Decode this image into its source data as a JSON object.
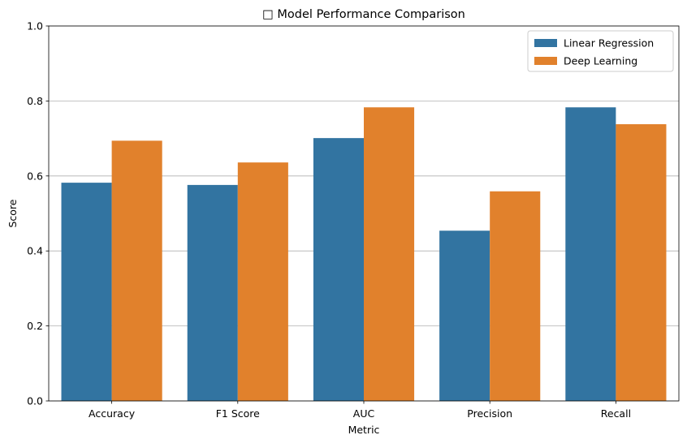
{
  "chart_data": {
    "type": "bar",
    "title": "□ Model Performance Comparison",
    "xlabel": "Metric",
    "ylabel": "Score",
    "categories": [
      "Accuracy",
      "F1 Score",
      "AUC",
      "Precision",
      "Recall"
    ],
    "series": [
      {
        "name": "Linear Regression",
        "color": "#3274a1",
        "values": [
          0.582,
          0.576,
          0.701,
          0.454,
          0.783
        ]
      },
      {
        "name": "Deep Learning",
        "color": "#e1812c",
        "values": [
          0.694,
          0.636,
          0.783,
          0.559,
          0.738
        ]
      }
    ],
    "ylim": [
      0,
      1.0
    ],
    "yticks": [
      "0.0",
      "0.2",
      "0.4",
      "0.6",
      "0.8",
      "1.0"
    ],
    "grid": "horizontal",
    "legend_position": "top-right"
  }
}
